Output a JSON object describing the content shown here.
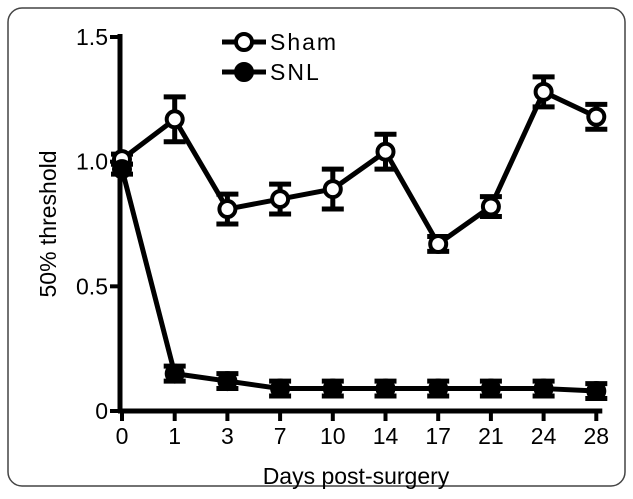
{
  "chart_data": {
    "type": "line",
    "x_label": "Days post-surgery",
    "y_label": "50% threshold",
    "categories": [
      "0",
      "1",
      "3",
      "7",
      "10",
      "14",
      "17",
      "21",
      "24",
      "28"
    ],
    "series": [
      {
        "name": "Sham",
        "color": "#000000",
        "marker": "open-circle",
        "values": [
          1.01,
          1.17,
          0.81,
          0.85,
          0.89,
          1.04,
          0.67,
          0.82,
          1.28,
          1.18
        ],
        "errors": [
          0.02,
          0.09,
          0.06,
          0.06,
          0.08,
          0.07,
          0.03,
          0.04,
          0.06,
          0.05
        ]
      },
      {
        "name": "SNL",
        "color": "#000000",
        "marker": "filled-circle",
        "values": [
          0.97,
          0.15,
          0.12,
          0.09,
          0.09,
          0.09,
          0.09,
          0.09,
          0.09,
          0.08
        ],
        "errors": [
          0.02,
          0.03,
          0.03,
          0.03,
          0.03,
          0.03,
          0.03,
          0.03,
          0.03,
          0.03
        ]
      }
    ],
    "ylim": [
      0,
      1.5
    ],
    "yticks": [
      0,
      0.5,
      {
        "value": 1,
        "label": "1.0"
      },
      1.5
    ]
  }
}
